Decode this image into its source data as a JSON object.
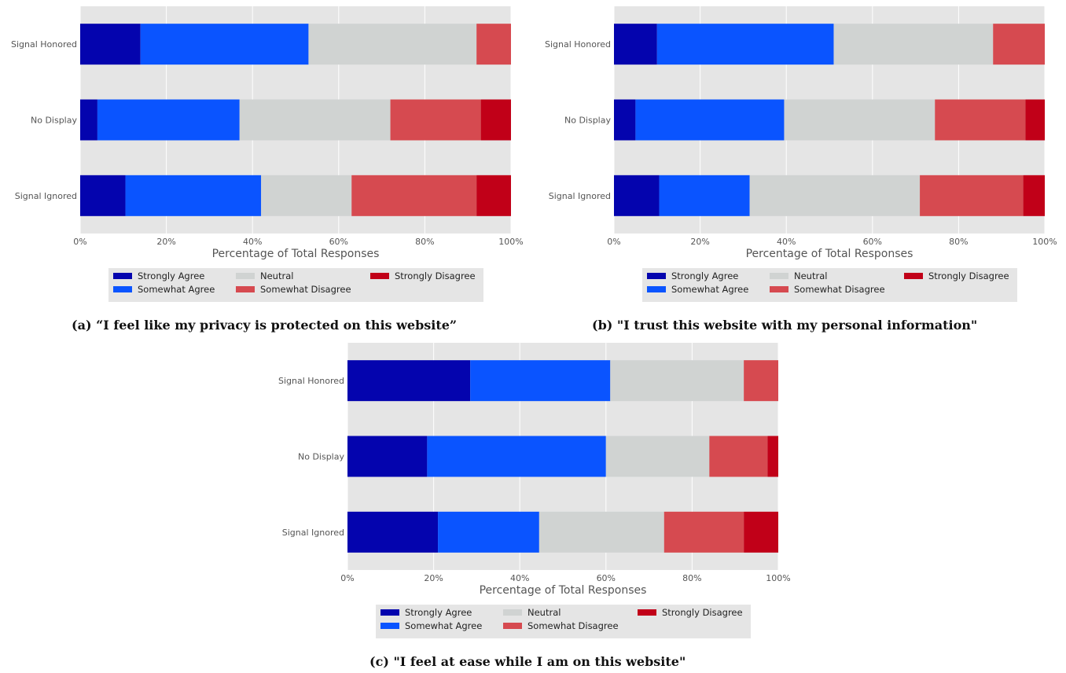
{
  "colors": {
    "strongly_agree": "#0404AE",
    "somewhat_agree": "#0A54FF",
    "neutral": "#D0D3D2",
    "somewhat_disagree": "#D64A50",
    "strongly_disagree": "#C10018",
    "plot_background": "#E5E5E5",
    "grid": "#FFFFFF"
  },
  "legend": {
    "placement": "below-plot",
    "entries": [
      "Strongly Agree",
      "Somewhat Agree",
      "Neutral",
      "Somewhat Disagree",
      "Strongly Disagree"
    ]
  },
  "chart_data": [
    {
      "type": "bar",
      "orientation": "horizontal-stacked",
      "caption": "(a) “I feel like my privacy is protected on this website”",
      "xlabel": "Percentage of Total Responses",
      "xlim": [
        0,
        100
      ],
      "xticks": [
        "0%",
        "20%",
        "40%",
        "60%",
        "80%",
        "100%"
      ],
      "grid": true,
      "categories": [
        "Signal Honored",
        "No Display",
        "Signal Ignored"
      ],
      "series": [
        {
          "name": "Strongly Agree",
          "values": [
            14,
            4,
            10.5
          ]
        },
        {
          "name": "Somewhat Agree",
          "values": [
            39,
            33,
            31.5
          ]
        },
        {
          "name": "Neutral",
          "values": [
            39,
            35,
            21
          ]
        },
        {
          "name": "Somewhat Disagree",
          "values": [
            8,
            21,
            29
          ]
        },
        {
          "name": "Strongly Disagree",
          "values": [
            0,
            7,
            8
          ]
        }
      ]
    },
    {
      "type": "bar",
      "orientation": "horizontal-stacked",
      "caption": "(b) \"I trust this website with my personal information\"",
      "xlabel": "Percentage of Total Responses",
      "xlim": [
        0,
        100
      ],
      "xticks": [
        "0%",
        "20%",
        "40%",
        "60%",
        "80%",
        "100%"
      ],
      "grid": true,
      "categories": [
        "Signal Honored",
        "No Display",
        "Signal Ignored"
      ],
      "series": [
        {
          "name": "Strongly Agree",
          "values": [
            10,
            5,
            10.5
          ]
        },
        {
          "name": "Somewhat Agree",
          "values": [
            41,
            34.5,
            21
          ]
        },
        {
          "name": "Neutral",
          "values": [
            37,
            35,
            39.5
          ]
        },
        {
          "name": "Somewhat Disagree",
          "values": [
            12,
            21,
            24
          ]
        },
        {
          "name": "Strongly Disagree",
          "values": [
            0,
            4.5,
            5
          ]
        }
      ]
    },
    {
      "type": "bar",
      "orientation": "horizontal-stacked",
      "caption": "(c) \"I feel at ease while I am on this website\"",
      "xlabel": "Percentage of Total Responses",
      "xlim": [
        0,
        100
      ],
      "xticks": [
        "0%",
        "20%",
        "40%",
        "60%",
        "80%",
        "100%"
      ],
      "grid": true,
      "categories": [
        "Signal Honored",
        "No Display",
        "Signal Ignored"
      ],
      "series": [
        {
          "name": "Strongly Agree",
          "values": [
            28.5,
            18.5,
            21
          ]
        },
        {
          "name": "Somewhat Agree",
          "values": [
            32.5,
            41.5,
            23.5
          ]
        },
        {
          "name": "Neutral",
          "values": [
            31,
            24,
            29
          ]
        },
        {
          "name": "Somewhat Disagree",
          "values": [
            8,
            13.5,
            18.5
          ]
        },
        {
          "name": "Strongly Disagree",
          "values": [
            0,
            2.5,
            8
          ]
        }
      ]
    }
  ]
}
